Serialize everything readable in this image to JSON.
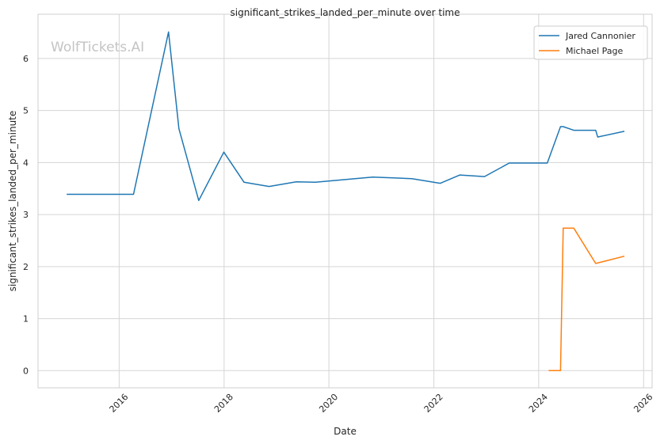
{
  "watermark": "WolfTickets.AI",
  "chart_data": {
    "type": "line",
    "title": "significant_strikes_landed_per_minute over time",
    "xlabel": "Date",
    "ylabel": "significant_strikes_landed_per_minute",
    "xlim": [
      "2014-06-15",
      "2026-03-01"
    ],
    "ylim": [
      -0.33,
      6.85
    ],
    "x_ticks": [
      "2016-01-01",
      "2018-01-01",
      "2020-01-01",
      "2022-01-01",
      "2024-01-01",
      "2026-01-01"
    ],
    "x_tick_labels": [
      "2016",
      "2018",
      "2020",
      "2022",
      "2024",
      "2026"
    ],
    "y_ticks": [
      0,
      1,
      2,
      3,
      4,
      5,
      6
    ],
    "y_tick_labels": [
      "0",
      "1",
      "2",
      "3",
      "4",
      "5",
      "6"
    ],
    "grid": true,
    "legend_position": "top-right",
    "series": [
      {
        "name": "Jared Cannonier",
        "color": "#1f77b4",
        "points": [
          [
            "2015-01-01",
            3.39
          ],
          [
            "2016-04-10",
            3.39
          ],
          [
            "2016-12-10",
            6.51
          ],
          [
            "2017-02-20",
            4.65
          ],
          [
            "2017-07-08",
            3.27
          ],
          [
            "2017-12-30",
            4.2
          ],
          [
            "2018-05-20",
            3.62
          ],
          [
            "2018-11-10",
            3.54
          ],
          [
            "2019-05-18",
            3.63
          ],
          [
            "2019-09-28",
            3.62
          ],
          [
            "2020-11-01",
            3.72
          ],
          [
            "2021-08-01",
            3.69
          ],
          [
            "2022-02-15",
            3.6
          ],
          [
            "2022-07-01",
            3.76
          ],
          [
            "2022-12-20",
            3.73
          ],
          [
            "2023-06-10",
            3.99
          ],
          [
            "2024-03-01",
            3.99
          ],
          [
            "2024-06-01",
            4.69
          ],
          [
            "2024-06-20",
            4.69
          ],
          [
            "2024-09-01",
            4.62
          ],
          [
            "2025-02-01",
            4.62
          ],
          [
            "2025-02-15",
            4.49
          ],
          [
            "2025-08-20",
            4.6
          ]
        ]
      },
      {
        "name": "Michael Page",
        "color": "#ff7f0e",
        "points": [
          [
            "2024-03-10",
            0.0
          ],
          [
            "2024-06-01",
            0.0
          ],
          [
            "2024-06-20",
            2.74
          ],
          [
            "2024-09-01",
            2.74
          ],
          [
            "2025-02-01",
            2.06
          ],
          [
            "2025-08-20",
            2.2
          ]
        ]
      }
    ]
  }
}
